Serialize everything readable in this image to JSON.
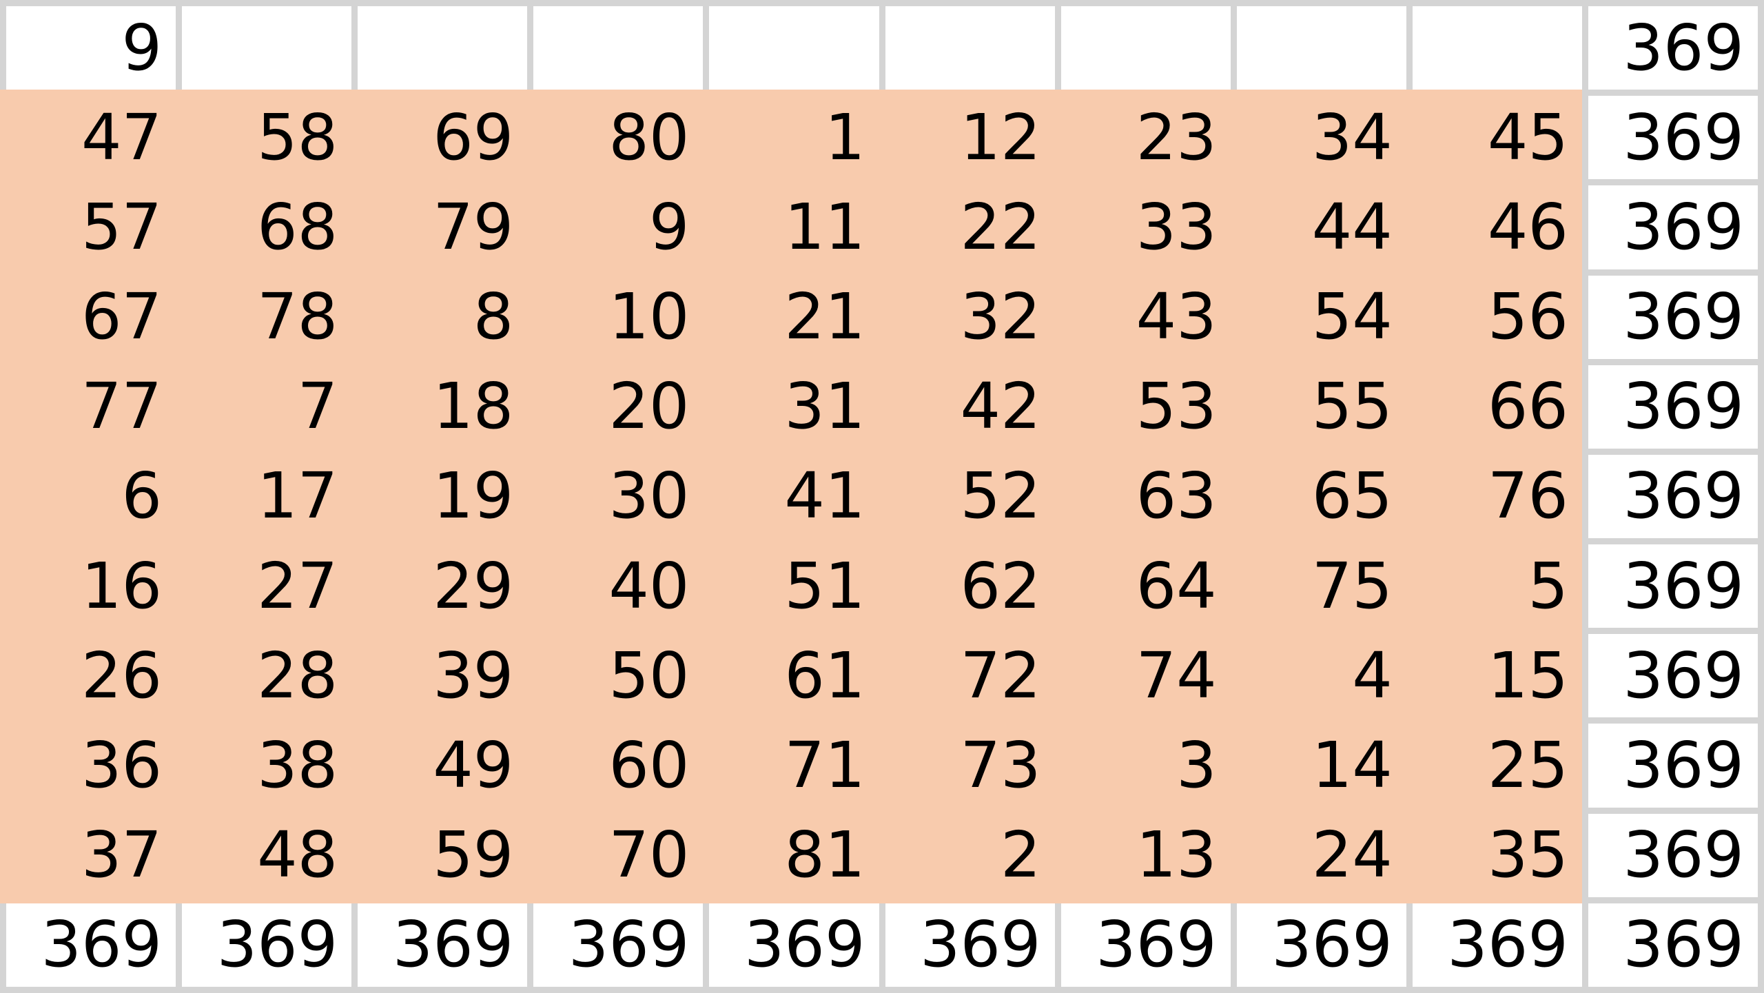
{
  "highlight_color": "#f8cbad",
  "rows": [
    [
      "9",
      "",
      "",
      "",
      "",
      "",
      "",
      "",
      "",
      "369"
    ],
    [
      "47",
      "58",
      "69",
      "80",
      "1",
      "12",
      "23",
      "34",
      "45",
      "369"
    ],
    [
      "57",
      "68",
      "79",
      "9",
      "11",
      "22",
      "33",
      "44",
      "46",
      "369"
    ],
    [
      "67",
      "78",
      "8",
      "10",
      "21",
      "32",
      "43",
      "54",
      "56",
      "369"
    ],
    [
      "77",
      "7",
      "18",
      "20",
      "31",
      "42",
      "53",
      "55",
      "66",
      "369"
    ],
    [
      "6",
      "17",
      "19",
      "30",
      "41",
      "52",
      "63",
      "65",
      "76",
      "369"
    ],
    [
      "16",
      "27",
      "29",
      "40",
      "51",
      "62",
      "64",
      "75",
      "5",
      "369"
    ],
    [
      "26",
      "28",
      "39",
      "50",
      "61",
      "72",
      "74",
      "4",
      "15",
      "369"
    ],
    [
      "36",
      "38",
      "49",
      "60",
      "71",
      "73",
      "3",
      "14",
      "25",
      "369"
    ],
    [
      "37",
      "48",
      "59",
      "70",
      "81",
      "2",
      "13",
      "24",
      "35",
      "369"
    ],
    [
      "369",
      "369",
      "369",
      "369",
      "369",
      "369",
      "369",
      "369",
      "369",
      "369"
    ]
  ]
}
